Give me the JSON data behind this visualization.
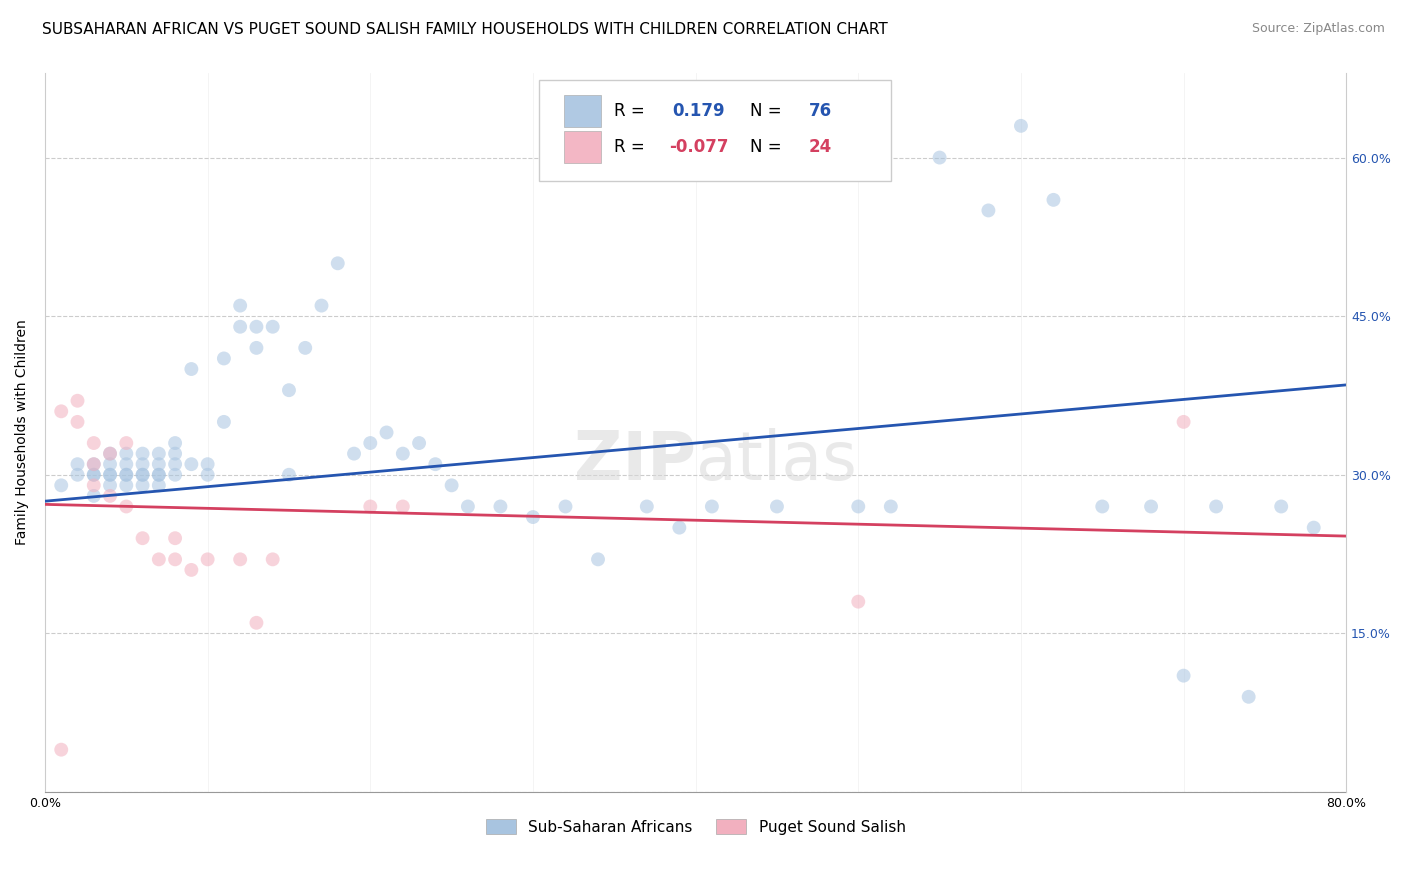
{
  "title": "SUBSAHARAN AFRICAN VS PUGET SOUND SALISH FAMILY HOUSEHOLDS WITH CHILDREN CORRELATION CHART",
  "source": "Source: ZipAtlas.com",
  "ylabel": "Family Households with Children",
  "xlim": [
    0.0,
    0.8
  ],
  "ylim": [
    0.0,
    0.68
  ],
  "xticks": [
    0.0,
    0.1,
    0.2,
    0.3,
    0.4,
    0.5,
    0.6,
    0.7,
    0.8
  ],
  "xticklabels": [
    "0.0%",
    "",
    "",
    "",
    "",
    "",
    "",
    "",
    "80.0%"
  ],
  "yticks": [
    0.0,
    0.15,
    0.3,
    0.45,
    0.6
  ],
  "blue_scatter_x": [
    0.01,
    0.02,
    0.02,
    0.03,
    0.03,
    0.03,
    0.04,
    0.04,
    0.04,
    0.04,
    0.05,
    0.05,
    0.05,
    0.05,
    0.06,
    0.06,
    0.06,
    0.06,
    0.07,
    0.07,
    0.07,
    0.07,
    0.08,
    0.08,
    0.08,
    0.08,
    0.09,
    0.09,
    0.1,
    0.1,
    0.11,
    0.11,
    0.12,
    0.12,
    0.13,
    0.13,
    0.14,
    0.15,
    0.15,
    0.16,
    0.17,
    0.18,
    0.19,
    0.2,
    0.21,
    0.22,
    0.23,
    0.24,
    0.25,
    0.26,
    0.28,
    0.3,
    0.32,
    0.34,
    0.37,
    0.39,
    0.41,
    0.45,
    0.5,
    0.52,
    0.55,
    0.58,
    0.6,
    0.62,
    0.65,
    0.68,
    0.7,
    0.72,
    0.74,
    0.76,
    0.78,
    0.03,
    0.04,
    0.05,
    0.06,
    0.07
  ],
  "blue_scatter_y": [
    0.29,
    0.3,
    0.31,
    0.3,
    0.31,
    0.28,
    0.29,
    0.31,
    0.3,
    0.32,
    0.3,
    0.31,
    0.32,
    0.29,
    0.3,
    0.31,
    0.29,
    0.32,
    0.31,
    0.3,
    0.29,
    0.32,
    0.3,
    0.32,
    0.31,
    0.33,
    0.31,
    0.4,
    0.3,
    0.31,
    0.35,
    0.41,
    0.46,
    0.44,
    0.42,
    0.44,
    0.44,
    0.3,
    0.38,
    0.42,
    0.46,
    0.5,
    0.32,
    0.33,
    0.34,
    0.32,
    0.33,
    0.31,
    0.29,
    0.27,
    0.27,
    0.26,
    0.27,
    0.22,
    0.27,
    0.25,
    0.27,
    0.27,
    0.27,
    0.27,
    0.6,
    0.55,
    0.63,
    0.56,
    0.27,
    0.27,
    0.11,
    0.27,
    0.09,
    0.27,
    0.25,
    0.3,
    0.3,
    0.3,
    0.3,
    0.3
  ],
  "pink_scatter_x": [
    0.01,
    0.02,
    0.02,
    0.03,
    0.03,
    0.03,
    0.04,
    0.04,
    0.05,
    0.05,
    0.06,
    0.07,
    0.08,
    0.08,
    0.09,
    0.1,
    0.12,
    0.13,
    0.14,
    0.2,
    0.22,
    0.5,
    0.7,
    0.01
  ],
  "pink_scatter_y": [
    0.36,
    0.35,
    0.37,
    0.31,
    0.33,
    0.29,
    0.32,
    0.28,
    0.27,
    0.33,
    0.24,
    0.22,
    0.24,
    0.22,
    0.21,
    0.22,
    0.22,
    0.16,
    0.22,
    0.27,
    0.27,
    0.18,
    0.35,
    0.04
  ],
  "blue_line_x": [
    0.0,
    0.8
  ],
  "blue_line_y_start": 0.275,
  "blue_line_y_end": 0.385,
  "pink_line_x": [
    0.0,
    0.8
  ],
  "pink_line_y_start": 0.272,
  "pink_line_y_end": 0.242,
  "blue_color": "#a8c4e0",
  "pink_color": "#f2b0bf",
  "blue_line_color": "#2555b0",
  "pink_line_color": "#d44060",
  "scatter_size": 100,
  "scatter_alpha": 0.55,
  "legend_r_blue": "0.179",
  "legend_n_blue": "76",
  "legend_r_pink": "-0.077",
  "legend_n_pink": "24",
  "legend_label_blue": "Sub-Saharan Africans",
  "legend_label_pink": "Puget Sound Salish",
  "grid_color": "#cccccc",
  "background_color": "#ffffff",
  "watermark_zip": "ZIP",
  "watermark_atlas": "atlas",
  "title_fontsize": 11,
  "axis_label_fontsize": 10,
  "tick_fontsize": 9,
  "source_fontsize": 9
}
